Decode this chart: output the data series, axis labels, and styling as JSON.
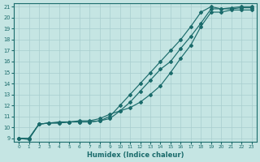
{
  "xlabel": "Humidex (Indice chaleur)",
  "ylabel": "",
  "xlim": [
    -0.5,
    23.5
  ],
  "ylim": [
    8.7,
    21.3
  ],
  "xticks": [
    0,
    1,
    2,
    3,
    4,
    5,
    6,
    7,
    8,
    9,
    10,
    11,
    12,
    13,
    14,
    15,
    16,
    17,
    18,
    19,
    20,
    21,
    22,
    23
  ],
  "yticks": [
    9,
    10,
    11,
    12,
    13,
    14,
    15,
    16,
    17,
    18,
    19,
    20,
    21
  ],
  "bg_color": "#c5e5e3",
  "grid_color": "#a8cece",
  "line_color": "#1a6b6b",
  "line1_x": [
    0,
    1,
    2,
    3,
    4,
    5,
    6,
    7,
    8,
    9,
    10,
    11,
    12,
    13,
    14,
    15,
    16,
    17,
    18,
    19,
    20,
    21,
    22,
    23
  ],
  "line1_y": [
    9.0,
    9.0,
    10.3,
    10.4,
    10.4,
    10.5,
    10.5,
    10.5,
    10.6,
    11.0,
    12.0,
    13.0,
    14.0,
    15.0,
    16.0,
    17.0,
    18.0,
    19.2,
    20.5,
    21.0,
    20.8,
    20.8,
    20.9,
    20.9
  ],
  "line2_x": [
    0,
    1,
    2,
    3,
    4,
    5,
    6,
    7,
    8,
    9,
    10,
    11,
    12,
    13,
    14,
    15,
    16,
    17,
    18,
    19,
    20,
    21,
    22,
    23
  ],
  "line2_y": [
    9.0,
    9.0,
    10.3,
    10.4,
    10.4,
    10.5,
    10.5,
    10.5,
    10.6,
    10.8,
    11.5,
    12.3,
    13.3,
    14.3,
    15.3,
    16.0,
    17.2,
    18.3,
    19.5,
    20.8,
    20.8,
    20.9,
    21.0,
    21.0
  ],
  "line3_x": [
    0,
    1,
    2,
    3,
    4,
    5,
    6,
    7,
    8,
    9,
    10,
    11,
    12,
    13,
    14,
    15,
    16,
    17,
    18,
    19,
    20,
    21,
    22,
    23
  ],
  "line3_y": [
    9.0,
    8.9,
    10.3,
    10.4,
    10.5,
    10.5,
    10.6,
    10.6,
    10.8,
    11.2,
    11.5,
    11.8,
    12.3,
    13.0,
    13.8,
    15.0,
    16.3,
    17.5,
    19.2,
    20.5,
    20.5,
    20.7,
    20.7,
    20.7
  ]
}
